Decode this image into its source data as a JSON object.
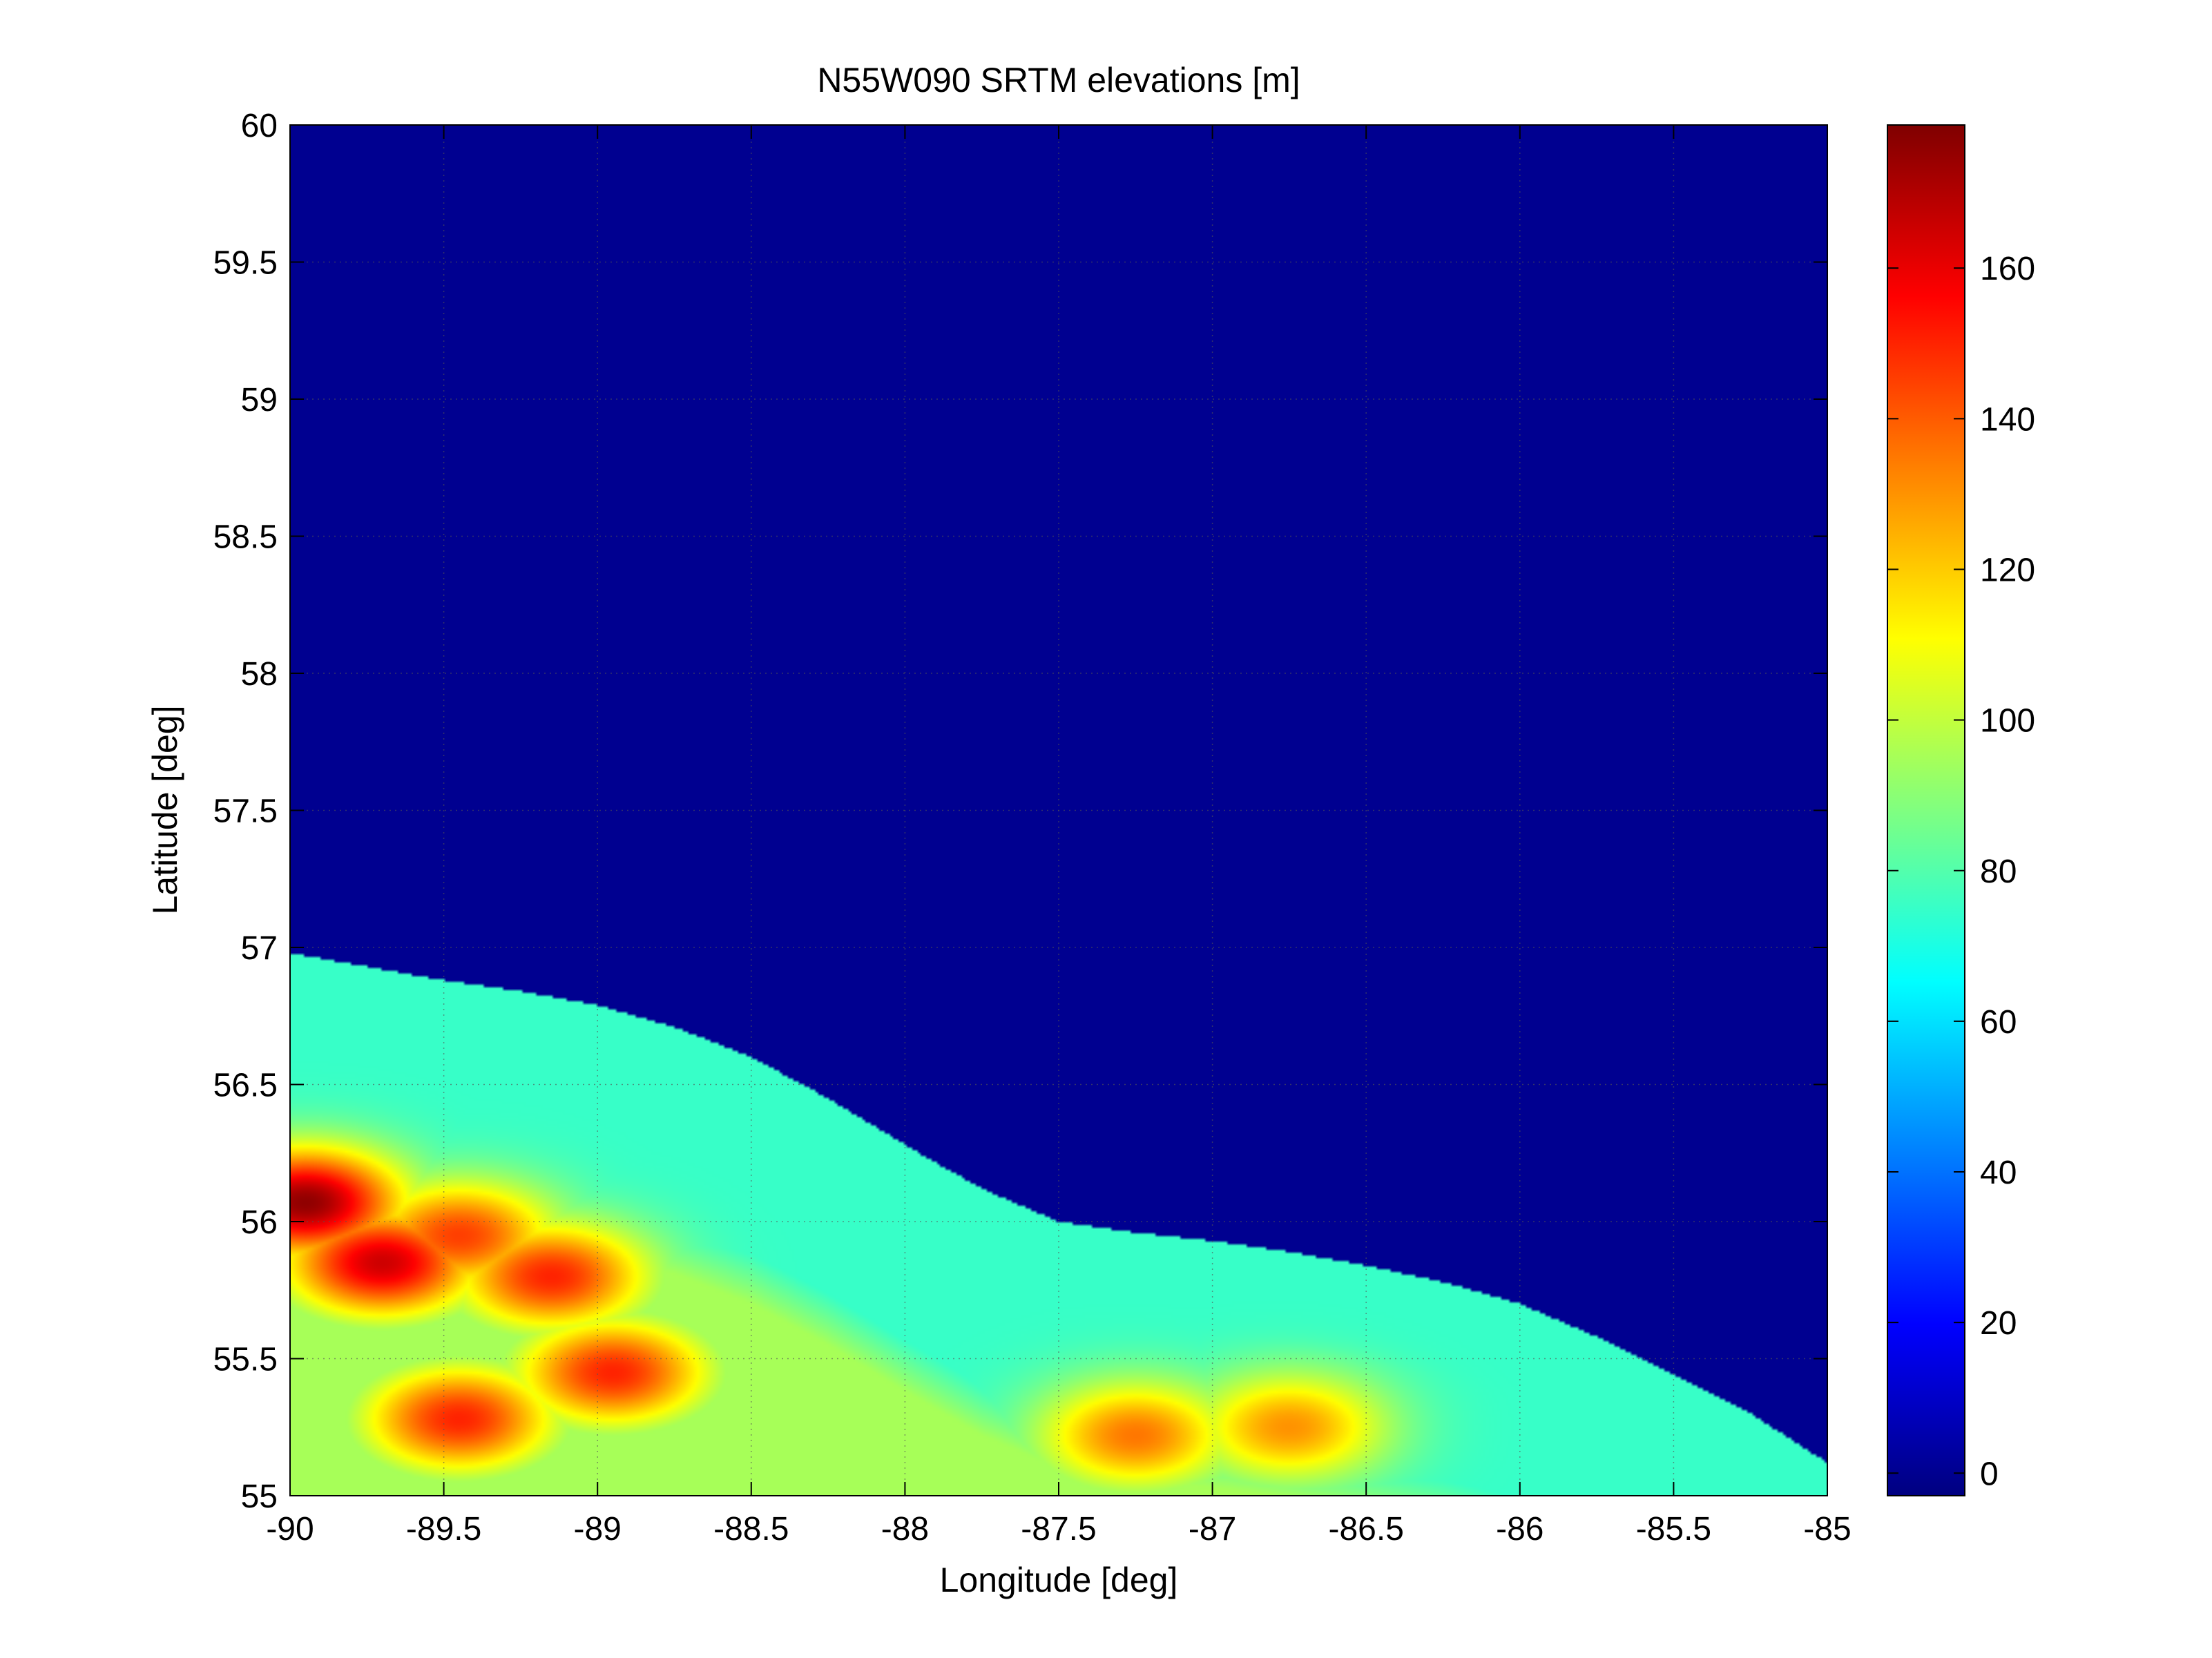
{
  "chart_data": {
    "type": "heatmap",
    "title": "N55W090 SRTM elevations [m]",
    "xlabel": "Longitude [deg]",
    "ylabel": "Latitude [deg]",
    "xlim": [
      -90,
      -85
    ],
    "ylim": [
      55,
      60
    ],
    "x_ticks": [
      -90,
      -89.5,
      -89,
      -88.5,
      -88,
      -87.5,
      -87,
      -86.5,
      -86,
      -85.5,
      -85
    ],
    "x_tick_labels": [
      "-90",
      "-89.5",
      "-89",
      "-88.5",
      "-88",
      "-87.5",
      "-87",
      "-86.5",
      "-86",
      "-85.5",
      "-85"
    ],
    "y_ticks": [
      55,
      55.5,
      56,
      56.5,
      57,
      57.5,
      58,
      58.5,
      59,
      59.5,
      60
    ],
    "y_tick_labels": [
      "55",
      "55.5",
      "56",
      "56.5",
      "57",
      "57.5",
      "58",
      "58.5",
      "59",
      "59.5",
      "60"
    ],
    "grid": true,
    "colormap": "jet",
    "colorbar": {
      "placement": "right",
      "range": [
        -3,
        179
      ],
      "ticks": [
        0,
        20,
        40,
        60,
        80,
        100,
        120,
        140,
        160
      ],
      "tick_labels": [
        "0",
        "20",
        "40",
        "60",
        "80",
        "100",
        "120",
        "140",
        "160"
      ]
    },
    "sea_level_value": 0,
    "coast_boundary": {
      "lon": [
        -90,
        -89.75,
        -89.5,
        -89.25,
        -89,
        -88.75,
        -88.5,
        -88.25,
        -88,
        -87.75,
        -87.5,
        -87.25,
        -87,
        -86.75,
        -86.5,
        -86.25,
        -86,
        -85.75,
        -85.5,
        -85.25,
        -85
      ],
      "lat": [
        56.98,
        56.93,
        56.88,
        56.84,
        56.79,
        56.71,
        56.6,
        56.45,
        56.28,
        56.12,
        56.0,
        55.96,
        55.93,
        55.89,
        55.84,
        55.78,
        55.7,
        55.58,
        55.44,
        55.3,
        55.12
      ]
    },
    "elevation_features": [
      {
        "lon": -89.95,
        "lat": 56.07,
        "elevation": 176
      },
      {
        "lon": -89.7,
        "lat": 55.85,
        "elevation": 165
      },
      {
        "lon": -89.45,
        "lat": 55.95,
        "elevation": 145
      },
      {
        "lon": -89.15,
        "lat": 55.8,
        "elevation": 150
      },
      {
        "lon": -89.45,
        "lat": 55.28,
        "elevation": 150
      },
      {
        "lon": -88.95,
        "lat": 55.45,
        "elevation": 150
      },
      {
        "lon": -87.25,
        "lat": 55.22,
        "elevation": 135
      },
      {
        "lon": -86.75,
        "lat": 55.25,
        "elevation": 130
      }
    ]
  }
}
